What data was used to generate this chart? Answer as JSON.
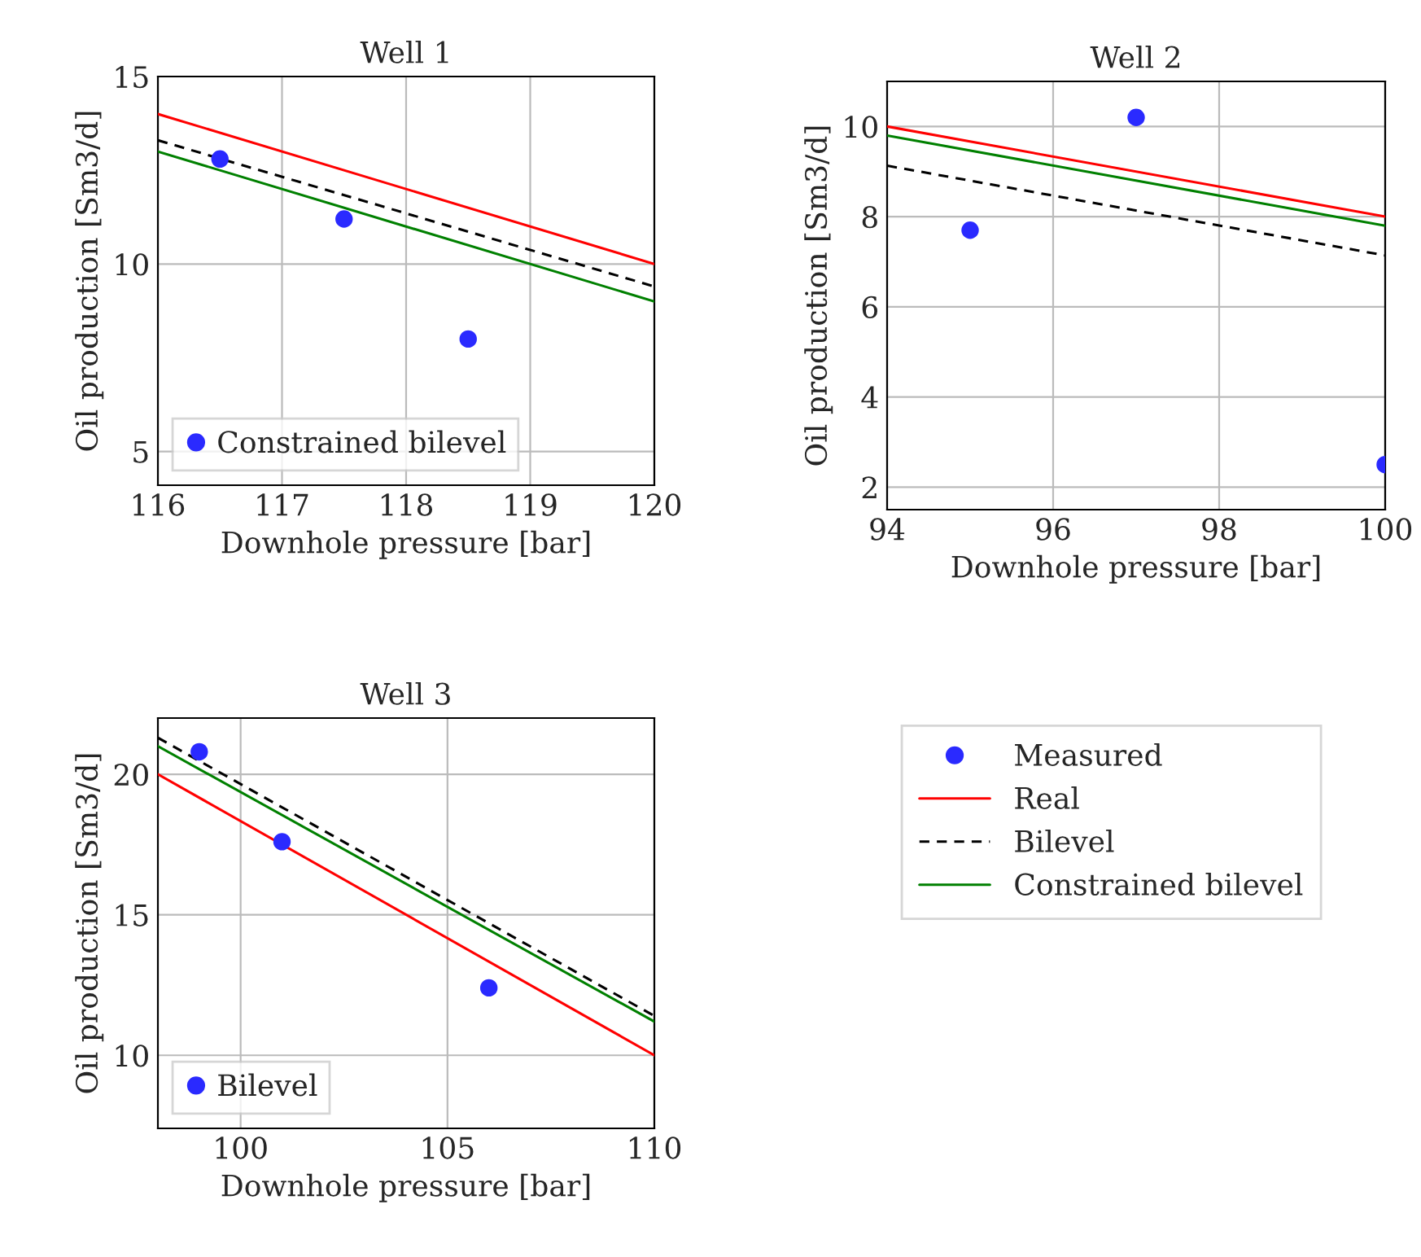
{
  "chart_data": [
    {
      "type": "line",
      "title": "Well 1",
      "xlabel": "Downhole pressure [bar]",
      "ylabel": "Oil production [Sm3/d]",
      "xlim": [
        116,
        120
      ],
      "xticks": [
        116,
        117,
        118,
        119,
        120
      ],
      "ylim": [
        4.1,
        15
      ],
      "yticks": [
        5,
        10,
        15
      ],
      "grid": true,
      "legend": "bottom left",
      "series": [
        {
          "type": "scatter",
          "marker": "circle",
          "name": "Constrained bilevel",
          "color": "#2a2aff",
          "x": [
            116.5,
            117.5,
            118.5
          ],
          "values": [
            12.8,
            11.2,
            8.0
          ]
        },
        {
          "type": "line",
          "line_style": "solid",
          "color": "#ff0000",
          "x": [
            116,
            120
          ],
          "values": [
            14.0,
            10.0
          ]
        },
        {
          "type": "line",
          "line_style": "dashed",
          "color": "#000000",
          "x": [
            116,
            120
          ],
          "values": [
            13.3,
            9.4
          ]
        },
        {
          "type": "line",
          "line_style": "solid",
          "color": "#008000",
          "x": [
            116,
            120
          ],
          "values": [
            13.0,
            9.0
          ]
        }
      ]
    },
    {
      "type": "line",
      "title": "Well 2",
      "xlabel": "Downhole pressure [bar]",
      "ylabel": "Oil production [Sm3/d]",
      "xlim": [
        94,
        100
      ],
      "xticks": [
        94,
        96,
        98,
        100
      ],
      "ylim": [
        1.5,
        11.0
      ],
      "yticks": [
        2,
        4,
        6,
        8,
        10
      ],
      "grid": true,
      "legend": "bottom",
      "series": [
        {
          "type": "scatter",
          "marker": "circle",
          "name": "Measured",
          "color": "#2a2aff",
          "x": [
            95,
            97,
            100
          ],
          "values": [
            7.7,
            10.2,
            2.5
          ]
        },
        {
          "type": "line",
          "line_style": "solid",
          "name": "Real",
          "color": "#ff0000",
          "x": [
            94,
            100
          ],
          "values": [
            10.0,
            8.0
          ]
        },
        {
          "type": "line",
          "line_style": "dashed",
          "name": "Bilevel",
          "color": "#000000",
          "x": [
            94,
            100
          ],
          "values": [
            9.13,
            7.14
          ]
        },
        {
          "type": "line",
          "line_style": "solid",
          "name": "Constrained bilevel",
          "color": "#008000",
          "x": [
            94,
            100
          ],
          "values": [
            9.8,
            7.8
          ]
        }
      ]
    },
    {
      "type": "line",
      "title": "Well 3",
      "xlabel": "Downhole pressure [bar]",
      "ylabel": "Oil production [Sm3/d]",
      "xlim": [
        98,
        110
      ],
      "xticks": [
        100,
        105,
        110
      ],
      "ylim": [
        7.4,
        22.0
      ],
      "yticks": [
        10,
        15,
        20
      ],
      "grid": true,
      "legend": "bottom left",
      "series": [
        {
          "type": "scatter",
          "marker": "circle",
          "name": "Bilevel",
          "color": "#2a2aff",
          "x": [
            99,
            101,
            106
          ],
          "values": [
            20.8,
            17.6,
            12.4
          ]
        },
        {
          "type": "line",
          "line_style": "solid",
          "color": "#ff0000",
          "x": [
            98,
            110
          ],
          "values": [
            20.0,
            10.0
          ]
        },
        {
          "type": "line",
          "line_style": "dashed",
          "color": "#000000",
          "x": [
            98,
            110
          ],
          "values": [
            21.3,
            11.4
          ]
        },
        {
          "type": "line",
          "line_style": "solid",
          "color": "#008000",
          "x": [
            98,
            110
          ],
          "values": [
            21.0,
            11.2
          ]
        }
      ]
    }
  ]
}
